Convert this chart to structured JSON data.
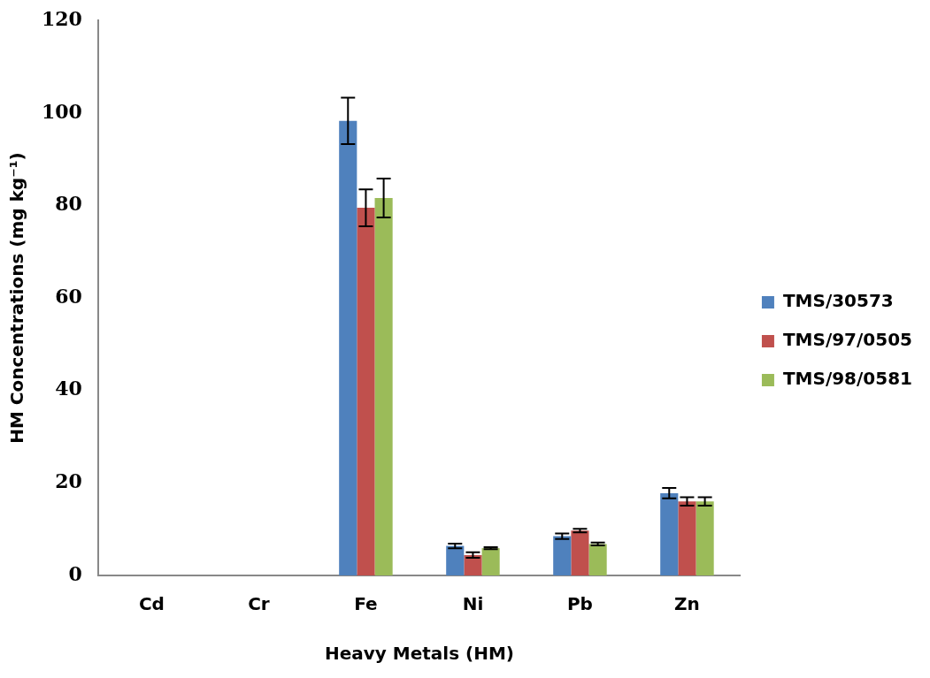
{
  "chart_data": {
    "type": "bar",
    "xlabel": "Heavy Metals (HM)",
    "ylabel": "HM Concentrations (mg kg⁻¹)",
    "categories": [
      "Cd",
      "Cr",
      "Fe",
      "Ni",
      "Pb",
      "Zn"
    ],
    "series": [
      {
        "name": "TMS/30573",
        "color": "#4f81bd",
        "values": [
          0,
          0,
          98.3,
          6.4,
          8.5,
          17.8
        ],
        "errors": [
          null,
          null,
          5.0,
          0.5,
          0.6,
          1.1
        ]
      },
      {
        "name": "TMS/97/0505",
        "color": "#c0504d",
        "values": [
          0,
          0,
          79.5,
          4.4,
          9.7,
          16.0
        ],
        "errors": [
          null,
          null,
          4.0,
          0.6,
          0.4,
          0.9
        ]
      },
      {
        "name": "TMS/98/0581",
        "color": "#9bbb59",
        "values": [
          0,
          0,
          81.6,
          5.9,
          6.8,
          16.0
        ],
        "errors": [
          null,
          null,
          4.2,
          0.2,
          0.3,
          0.9
        ]
      }
    ],
    "ylim": [
      0,
      120
    ],
    "yticks": [
      0,
      20,
      40,
      60,
      80,
      100,
      120
    ],
    "grid": false,
    "legend": "right"
  }
}
